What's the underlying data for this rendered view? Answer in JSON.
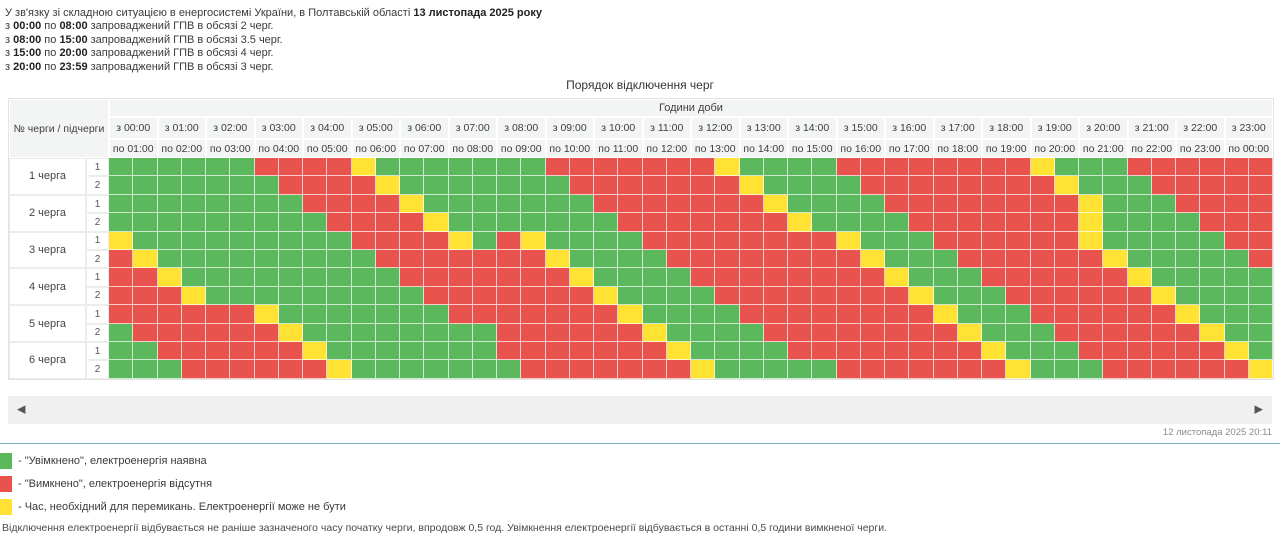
{
  "intro": {
    "line1_text": "У зв'язку зі складною ситуацією в енергосистемі України, в Полтавській області ",
    "line1_bold": "13 листопада 2025 року",
    "schedule": [
      {
        "pre": "з ",
        "from": "00:00",
        "mid": " по ",
        "to": "08:00",
        "rest": " запроваджений ГПВ в обсязі 2 черг."
      },
      {
        "pre": "з ",
        "from": "08:00",
        "mid": " по ",
        "to": "15:00",
        "rest": " запроваджений ГПВ в обсязі 3.5 черг."
      },
      {
        "pre": "з ",
        "from": "15:00",
        "mid": " по ",
        "to": "20:00",
        "rest": " запроваджений ГПВ в обсязі 4 черг."
      },
      {
        "pre": "з ",
        "from": "20:00",
        "mid": " по ",
        "to": "23:59",
        "rest": " запроваджений ГПВ в обсязі 3 черг."
      }
    ]
  },
  "table": {
    "title": "Порядок відключення черг",
    "corner_label": "№ черги / підчерги",
    "hours_title": "Години доби",
    "colors": {
      "G": "#5cb85c",
      "R": "#e8534e",
      "Y": "#ffe234"
    },
    "columns": [
      {
        "from": "з 00:00",
        "to": "по 01:00"
      },
      {
        "from": "з 01:00",
        "to": "по 02:00"
      },
      {
        "from": "з 02:00",
        "to": "по 03:00"
      },
      {
        "from": "з 03:00",
        "to": "по 04:00"
      },
      {
        "from": "з 04:00",
        "to": "по 05:00"
      },
      {
        "from": "з 05:00",
        "to": "по 06:00"
      },
      {
        "from": "з 06:00",
        "to": "по 07:00"
      },
      {
        "from": "з 07:00",
        "to": "по 08:00"
      },
      {
        "from": "з 08:00",
        "to": "по 09:00"
      },
      {
        "from": "з 09:00",
        "to": "по 10:00"
      },
      {
        "from": "з 10:00",
        "to": "по 11:00"
      },
      {
        "from": "з 11:00",
        "to": "по 12:00"
      },
      {
        "from": "з 12:00",
        "to": "по 13:00"
      },
      {
        "from": "з 13:00",
        "to": "по 14:00"
      },
      {
        "from": "з 14:00",
        "to": "по 15:00"
      },
      {
        "from": "з 15:00",
        "to": "по 16:00"
      },
      {
        "from": "з 16:00",
        "to": "по 17:00"
      },
      {
        "from": "з 17:00",
        "to": "по 18:00"
      },
      {
        "from": "з 18:00",
        "to": "по 19:00"
      },
      {
        "from": "з 19:00",
        "to": "по 20:00"
      },
      {
        "from": "з 20:00",
        "to": "по 21:00"
      },
      {
        "from": "з 21:00",
        "to": "по 22:00"
      },
      {
        "from": "з 22:00",
        "to": "по 23:00"
      },
      {
        "from": "з 23:00",
        "to": "по 00:00"
      }
    ],
    "queues": [
      {
        "label": "1 черга",
        "rows": [
          {
            "sub": "1",
            "cells": "GGGGGGRRRRYGGGGGGGRRRRRRRYGGGGRRRRRRRRYGGGRRRRRR"
          },
          {
            "sub": "2",
            "cells": "GGGGGGGRRRRYGGGGGGGRRRRRRRYGGGGRRRRRRRRYGGGRRRRR"
          }
        ]
      },
      {
        "label": "2 черга",
        "rows": [
          {
            "sub": "1",
            "cells": "GGGGGGGGRRRRYGGGGGGGRRRRRRRYGGGGRRRRRRRRYGGGRRRR"
          },
          {
            "sub": "2",
            "cells": "GGGGGGGGGRRRRYGGGGGGGRRRRRRRYGGGGRRRRRRRYGGGGRRR"
          }
        ]
      },
      {
        "label": "3 черга",
        "rows": [
          {
            "sub": "1",
            "cells": "YGGGGGGGGGRRRRYGRYGGGGRRRRRRRRYGGGRRRRRRYGGGGGRR"
          },
          {
            "sub": "2",
            "cells": "RYGGGGGGGGGRRRRRRRYGGGGRRRRRRRRYGGGRRRRRRYGGGGGR"
          }
        ]
      },
      {
        "label": "4 черга",
        "rows": [
          {
            "sub": "1",
            "cells": "RRYGGGGGGGGGRRRRRRRYGGGGRRRRRRRRYGGGRRRRRRYGGGGG"
          },
          {
            "sub": "2",
            "cells": "RRRYGGGGGGGGGRRRRRRRYGGGGRRRRRRRRYGGGRRRRRRYGGGG"
          }
        ]
      },
      {
        "label": "5 черга",
        "rows": [
          {
            "sub": "1",
            "cells": "RRRRRRYGGGGGGGRRRRRRRYGGGGRRRRRRRRYGGGRRRRRRYGGG"
          },
          {
            "sub": "2",
            "cells": "GRRRRRRYGGGGGGGGRRRRRRYGGGGRRRRRRRRYGGGRRRRRRYGG"
          }
        ]
      },
      {
        "label": "6 черга",
        "rows": [
          {
            "sub": "1",
            "cells": "GGRRRRRRYGGGGGGGRRRRRRRYGGGGRRRRRRRRYGGGRRRRRRYG"
          },
          {
            "sub": "2",
            "cells": "GGGRRRRRRYGGGGGGGRRRRRRRYGGGGGRRRRRRRYGGGRRRRRRY"
          }
        ]
      }
    ]
  },
  "legend": [
    {
      "key": "G",
      "label": "- \"Увімкнено\", електроенергія наявна"
    },
    {
      "key": "R",
      "label": "- \"Вимкнено\", електроенергія відсутня"
    },
    {
      "key": "Y",
      "label": "- Час, необхідний для перемикань. Електроенергії може не бути"
    }
  ],
  "footer": {
    "left_arrow": "◀",
    "right_arrow": "▶",
    "updated": "12 листопада 2025 20:11",
    "separator_color": "#79abcb",
    "note": "Відключення електроенергії відбувається не раніше зазначеного часу початку черги, впродовж 0,5 год. Увімкнення електроенергії відбувається в останні 0,5 години вимкненої черги."
  }
}
